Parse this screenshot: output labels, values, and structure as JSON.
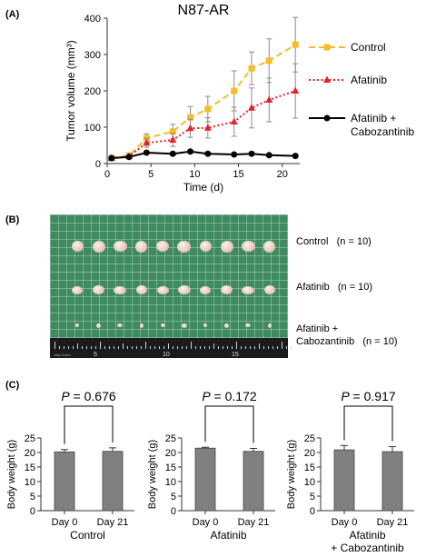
{
  "panels": {
    "a_label": "(A)",
    "b_label": "(B)",
    "c_label": "(C)"
  },
  "colors": {
    "control": "#f5bd26",
    "afatinib": "#e8212a",
    "combo": "#000000",
    "bar_fill": "#808080",
    "error_bar": "#8c8c8c"
  },
  "chart_data": [
    {
      "type": "line",
      "title": "N87-AR",
      "xlabel": "Time (d)",
      "ylabel": "Tumor volume (mm³)",
      "xlim": [
        0,
        22
      ],
      "ylim": [
        0,
        400
      ],
      "xticks": [
        0,
        5,
        10,
        15,
        20
      ],
      "yticks": [
        0,
        100,
        200,
        300,
        400
      ],
      "legend": "right",
      "series": [
        {
          "name": "Control",
          "color": "#f5bd26",
          "marker": "square",
          "x": [
            0.5,
            2.5,
            4.5,
            7.5,
            9.5,
            11.5,
            14.5,
            16.5,
            18.5,
            21.5
          ],
          "y": [
            15,
            22,
            70,
            88,
            127,
            150,
            200,
            262,
            283,
            327
          ],
          "err": [
            4,
            6,
            12,
            20,
            30,
            35,
            55,
            45,
            60,
            75
          ]
        },
        {
          "name": "Afatinib",
          "color": "#e8212a",
          "marker": "triangle",
          "x": [
            0.5,
            2.5,
            4.5,
            7.5,
            9.5,
            11.5,
            14.5,
            16.5,
            18.5,
            21.5
          ],
          "y": [
            15,
            20,
            57,
            65,
            97,
            98,
            115,
            153,
            175,
            200
          ],
          "err": [
            4,
            5,
            12,
            18,
            25,
            28,
            40,
            55,
            60,
            75
          ]
        },
        {
          "name": "Afatinib +\nCabozantinib",
          "color": "#000000",
          "marker": "circle",
          "x": [
            0.5,
            2.5,
            4.5,
            7.5,
            9.5,
            11.5,
            14.5,
            16.5,
            18.5,
            21.5
          ],
          "y": [
            15,
            18,
            30,
            27,
            33,
            27,
            25,
            27,
            23,
            21
          ],
          "err": [
            3,
            3,
            4,
            4,
            4,
            3,
            3,
            3,
            3,
            3
          ]
        }
      ]
    },
    {
      "type": "bar",
      "title": "P = 0.676",
      "xlabel": "Control",
      "ylabel": "Body weight (g)",
      "categories": [
        "Day 0",
        "Day 21"
      ],
      "values": [
        20.2,
        20.4
      ],
      "err": [
        0.8,
        1.2
      ],
      "ylim": [
        0,
        25
      ],
      "yticks": [
        0,
        5,
        10,
        15,
        20,
        25
      ]
    },
    {
      "type": "bar",
      "title": "P = 0.172",
      "xlabel": "Afatinib",
      "ylabel": "Body weight (g)",
      "categories": [
        "Day 0",
        "Day 21"
      ],
      "values": [
        21.5,
        20.4
      ],
      "err": [
        0.3,
        1.0
      ],
      "ylim": [
        0,
        25
      ],
      "yticks": [
        0,
        5,
        10,
        15,
        20,
        25
      ]
    },
    {
      "type": "bar",
      "title": "P = 0.917",
      "xlabel": "Afatinib\n+ Cabozantinib",
      "ylabel": "Body weight (g)",
      "categories": [
        "Day 0",
        "Day 21"
      ],
      "values": [
        20.9,
        20.3
      ],
      "err": [
        1.5,
        1.7
      ],
      "ylim": [
        0,
        25
      ],
      "yticks": [
        0,
        5,
        10,
        15,
        20,
        25
      ]
    }
  ],
  "photo": {
    "groups": [
      {
        "label": "Control   (n = 10)",
        "count": 10,
        "size": "large"
      },
      {
        "label": "Afatinib   (n = 10)",
        "count": 10,
        "size": "medium"
      },
      {
        "label": "Afatinib +\nCabozantinib   (n = 10)",
        "count": 10,
        "size": "small"
      }
    ],
    "ruler_numbers": [
      "5",
      "10",
      "15"
    ],
    "ruler_note": "1div=1mm"
  }
}
